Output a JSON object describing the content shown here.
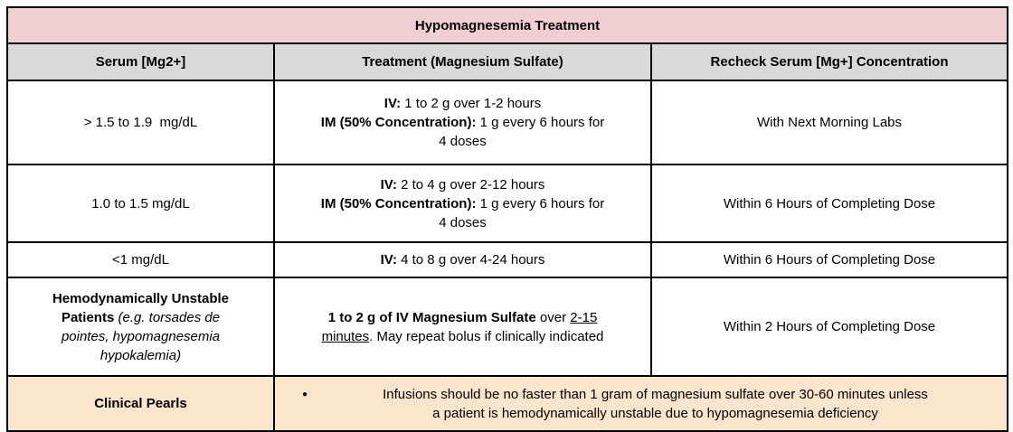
{
  "colors": {
    "title_bg": "#f0ced2",
    "header_bg": "#d9d9d9",
    "footer_bg": "#fbe5cd",
    "border": "#000000",
    "text": "#000000"
  },
  "table": {
    "title": "Hypomagnesemia Treatment",
    "headers": {
      "serum": "Serum [Mg2+]",
      "treatment": "Treatment (Magnesium Sulfate)",
      "recheck": "Recheck Serum [Mg+] Concentration"
    },
    "rows": [
      {
        "serum": "> 1.5 to 1.9  mg/dL",
        "treatment_rich": [
          {
            "text": "IV:",
            "style": "bold"
          },
          {
            "text": " 1 to 2 g over 1-2 hours\n",
            "style": ""
          },
          {
            "text": "IM (50% Concentration):",
            "style": "bold"
          },
          {
            "text": " 1 g every 6 hours for\n4 doses",
            "style": ""
          }
        ],
        "recheck": "With Next Morning Labs"
      },
      {
        "serum": "1.0 to 1.5 mg/dL",
        "treatment_rich": [
          {
            "text": "IV:",
            "style": "bold"
          },
          {
            "text": " 2 to 4 g over 2-12 hours\n",
            "style": ""
          },
          {
            "text": "IM (50% Concentration):",
            "style": "bold"
          },
          {
            "text": " 1 g every 6 hours for\n4 doses",
            "style": ""
          }
        ],
        "recheck": "Within 6 Hours of Completing Dose"
      },
      {
        "serum": "<1 mg/dL",
        "treatment_rich": [
          {
            "text": "IV:",
            "style": "bold"
          },
          {
            "text": " 4 to 8 g over 4-24 hours",
            "style": ""
          }
        ],
        "recheck": "Within 6 Hours of Completing Dose"
      },
      {
        "serum_rich": [
          {
            "text": "Hemodynamically Unstable\nPatients",
            "style": "bold"
          },
          {
            "text": " (e.g. torsades de\npointes, hypomagnesemia\nhypokalemia)",
            "style": "italic"
          }
        ],
        "treatment_rich": [
          {
            "text": "1 to 2 g of IV Magnesium Sulfate",
            "style": "bold"
          },
          {
            "text": " over ",
            "style": ""
          },
          {
            "text": "2-15\nminutes",
            "style": "underline"
          },
          {
            "text": ". May repeat bolus if clinically indicated",
            "style": ""
          }
        ],
        "recheck": "Within 2 Hours of Completing Dose"
      }
    ],
    "footer": {
      "label": "Clinical Pearls",
      "bullet": "●",
      "note_rich": [
        {
          "text": "Infusions should be no faster than 1 gram of magnesium sulfate over 30-60 minutes unless\na patient is hemodynamically unstable due to hypomagnesemia deficiency",
          "style": ""
        }
      ]
    }
  }
}
